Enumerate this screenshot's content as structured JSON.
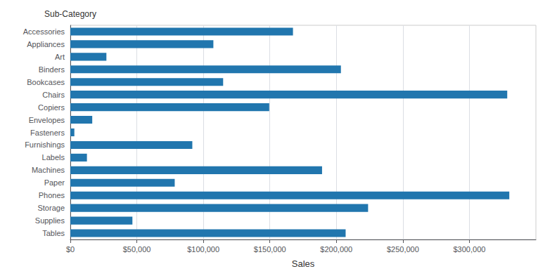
{
  "chart_data": {
    "type": "bar",
    "orientation": "horizontal",
    "xlabel": "Sales",
    "ylabel": "Sub-Category",
    "categories": [
      "Accessories",
      "Appliances",
      "Art",
      "Binders",
      "Bookcases",
      "Chairs",
      "Copiers",
      "Envelopes",
      "Fasteners",
      "Furnishings",
      "Labels",
      "Machines",
      "Paper",
      "Phones",
      "Storage",
      "Supplies",
      "Tables"
    ],
    "values": [
      167380,
      107532,
      27119,
      203413,
      114880,
      328449,
      149528,
      16476,
      3024,
      91705,
      12486,
      189239,
      78479,
      330007,
      223844,
      46674,
      206966
    ],
    "color": "#2176ae",
    "xlim": [
      0,
      350000
    ],
    "xticks": [
      {
        "value": 0,
        "label": "$0"
      },
      {
        "value": 50000,
        "label": "$50,000"
      },
      {
        "value": 100000,
        "label": "$100,000"
      },
      {
        "value": 150000,
        "label": "$150,000"
      },
      {
        "value": 200000,
        "label": "$200,000"
      },
      {
        "value": 250000,
        "label": "$250,000"
      },
      {
        "value": 300000,
        "label": "$300,000"
      }
    ],
    "grid": true
  }
}
